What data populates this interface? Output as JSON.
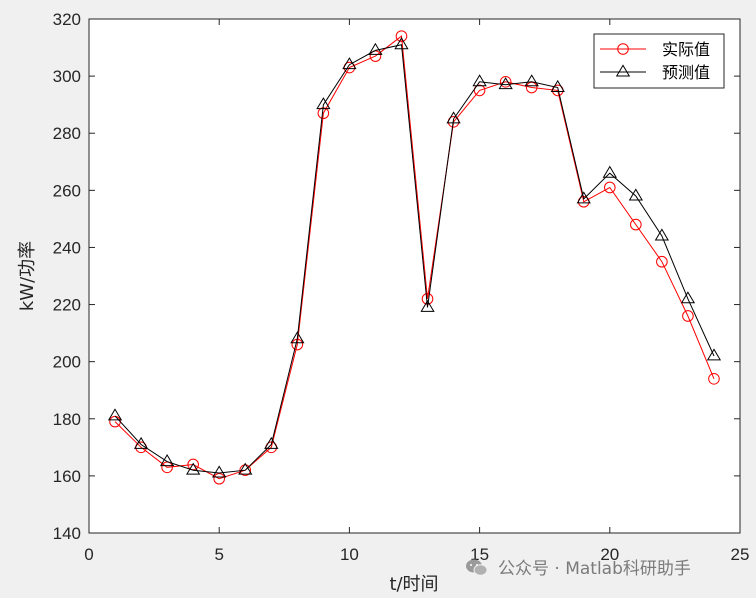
{
  "chart_data": {
    "type": "line",
    "title": "",
    "xlabel": "t/时间",
    "ylabel": "kW/功率",
    "xlim": [
      0,
      25
    ],
    "ylim": [
      140,
      320
    ],
    "xticks": [
      0,
      5,
      10,
      15,
      20,
      25
    ],
    "yticks": [
      140,
      160,
      180,
      200,
      220,
      240,
      260,
      280,
      300,
      320
    ],
    "grid": false,
    "legend_position": "top-right",
    "x": [
      1,
      2,
      3,
      4,
      5,
      6,
      7,
      8,
      9,
      10,
      11,
      12,
      13,
      14,
      15,
      16,
      17,
      18,
      19,
      20,
      21,
      22,
      23,
      24
    ],
    "series": [
      {
        "name": "实际值",
        "color": "#ff0000",
        "marker": "circle",
        "values": [
          179,
          170,
          163,
          164,
          159,
          162,
          170,
          206,
          287,
          303,
          307,
          314,
          222,
          284,
          295,
          298,
          296,
          295,
          256,
          261,
          248,
          235,
          216,
          194
        ]
      },
      {
        "name": "预测值",
        "color": "#000000",
        "marker": "triangle",
        "values": [
          181,
          171,
          165,
          162,
          161,
          162,
          171,
          208,
          290,
          304,
          309,
          311,
          219,
          285,
          298,
          297,
          298,
          296,
          257,
          266,
          258,
          244,
          222,
          202
        ]
      }
    ]
  },
  "watermark": {
    "text": "公众号 · Matlab科研助手",
    "icon": "wechat-icon"
  }
}
